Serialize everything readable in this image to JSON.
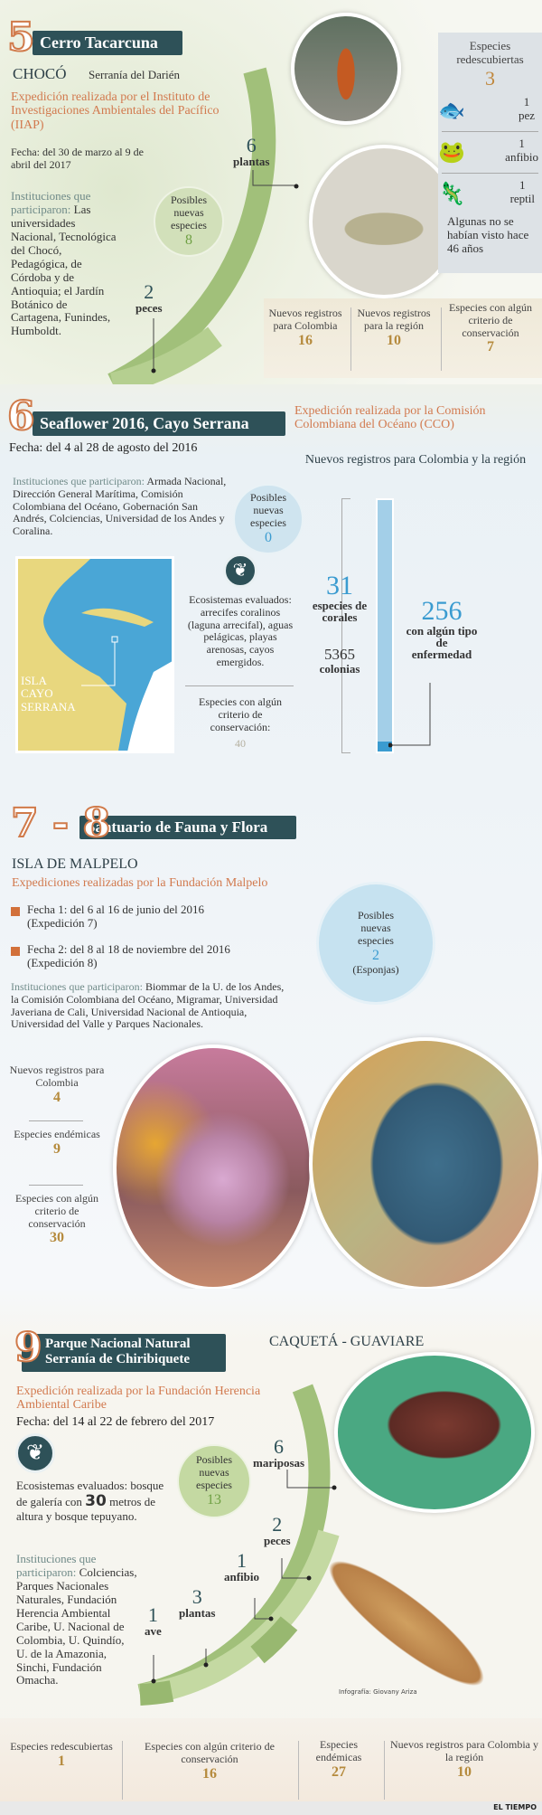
{
  "s5": {
    "num": "5",
    "title": "Cerro Tacarcuna",
    "region": "CHOCÓ",
    "subregion": "Serranía del Darién",
    "expedition": "Expedición realizada por el Instituto de Investigaciones Ambientales del Pacífico (IIAP)",
    "date": "Fecha: del 30 de marzo al 9 de abril del 2017",
    "inst_label": "Instituciones que participaron:",
    "inst": "Las universidades Nacional, Tecnológica del Chocó, Pedagógica, de Córdoba y de Antioquia; el Jardín Botánico de Cartagena, Funindes, Humboldt.",
    "new_label": "Posibles nuevas especies",
    "new_value": "8",
    "plants_n": "6",
    "plants": "plantas",
    "fish_n": "2",
    "fish": "peces",
    "redisc": {
      "label": "Especies redescubiertas",
      "value": "3",
      "items": [
        {
          "n": "1",
          "label": "pez",
          "icon": "fish-icon"
        },
        {
          "n": "1",
          "label": "anfibio",
          "icon": "frog-icon"
        },
        {
          "n": "1",
          "label": "reptil",
          "icon": "lizard-icon"
        }
      ],
      "note": "Algunas no se habían visto hace 46 años"
    },
    "stats": [
      {
        "label": "Nuevos registros para Colombia",
        "value": "16"
      },
      {
        "label": "Nuevos registros para la región",
        "value": "10"
      },
      {
        "label": "Especies con algún criterio de conservación",
        "value": "7"
      }
    ]
  },
  "s6": {
    "num": "6",
    "title": "Seaflower 2016, Cayo Serrana",
    "expedition": "Expedición realizada por la Comisión Colombiana del Océano (CCO)",
    "date": "Fecha: del 4 al 28 de agosto del 2016",
    "inst_label": "Instituciones que participaron:",
    "inst": "Armada Nacional, Dirección General Marítima, Comisión Colombiana del Océano, Gobernación San Andrés, Colciencias, Universidad de los Andes y Coralina.",
    "new_label": "Posibles nuevas especies",
    "new_value": "0",
    "map_label": "ISLA CAYO SERRANA",
    "eco": "Ecosistemas evaluados: arrecifes coralinos (laguna arrecifal), aguas pelágicas, playas arenosas, cayos emergidos.",
    "cons_label": "Especies con algún criterio de conservación:",
    "cons_value": "40",
    "records_title": "Nuevos registros para Colombia y la región",
    "corals_n": "31",
    "corals": "especies de corales",
    "colonies_n": "5365",
    "colonies": "colonias",
    "disease_n": "256",
    "disease": "con algún tipo de enfermedad"
  },
  "s78": {
    "num": "7 - 8",
    "title": "Santuario de Fauna y Flora",
    "place": "ISLA DE MALPELO",
    "expedition": "Expediciones realizadas por la Fundación Malpelo",
    "date1": "Fecha 1: del 6 al 16 de junio del 2016 (Expedición 7)",
    "date2": "Fecha 2: del 8 al 18 de noviembre del 2016 (Expedición 8)",
    "inst_label": "Instituciones que participaron:",
    "inst": "Biommar de la U. de los Andes, la Comisión Colombiana del Océano, Migramar, Universidad Javeriana de Cali, Universidad Nacional de Antioquia, Universidad del Valle y Parques Nacionales.",
    "new_label": "Posibles nuevas especies",
    "new_value": "2",
    "new_note": "(Esponjas)",
    "stats": [
      {
        "label": "Nuevos registros para Colombia",
        "value": "4"
      },
      {
        "label": "Especies endémicas",
        "value": "9"
      },
      {
        "label": "Especies con algún criterio de conservación",
        "value": "30"
      }
    ]
  },
  "s9": {
    "num": "9",
    "title": "Parque Nacional Natural Serranía de Chiribiquete",
    "region": "CAQUETÁ - GUAVIARE",
    "expedition": "Expedición realizada por la Fundación Herencia Ambiental Caribe",
    "date": "Fecha: del 14 al 22 de febrero del 2017",
    "eco_a": "Ecosistemas evaluados: bosque de galería con",
    "eco_n": "30",
    "eco_b": "metros de altura y bosque tepuyano.",
    "inst_label": "Instituciones que participaron:",
    "inst": "Colciencias, Parques Nacionales Naturales, Fundación Herencia Ambiental Caribe, U. Nacional de Colombia, U. Quindío, U. de la Amazonia, Sinchi, Fundación Omacha.",
    "new_label": "Posibles nuevas especies",
    "new_value": "13",
    "groups": [
      {
        "n": "6",
        "label": "mariposas"
      },
      {
        "n": "2",
        "label": "peces"
      },
      {
        "n": "1",
        "label": "anfibio"
      },
      {
        "n": "3",
        "label": "plantas"
      },
      {
        "n": "1",
        "label": "ave"
      }
    ],
    "stats": [
      {
        "label": "Especies redescubiertas",
        "value": "1"
      },
      {
        "label": "Especies con algún criterio de conservación",
        "value": "16"
      },
      {
        "label": "Especies endémicas",
        "value": "27"
      },
      {
        "label": "Nuevos registros para Colombia y la región",
        "value": "10"
      }
    ],
    "credit": "Infografía: Giovany Ariza"
  },
  "footer": {
    "brand": "EL TIEMPO"
  },
  "colors": {
    "accent": "#d27a4f",
    "title_bar": "#2e5158",
    "green": "#9dbb6e",
    "blue": "#4aa8d8"
  }
}
